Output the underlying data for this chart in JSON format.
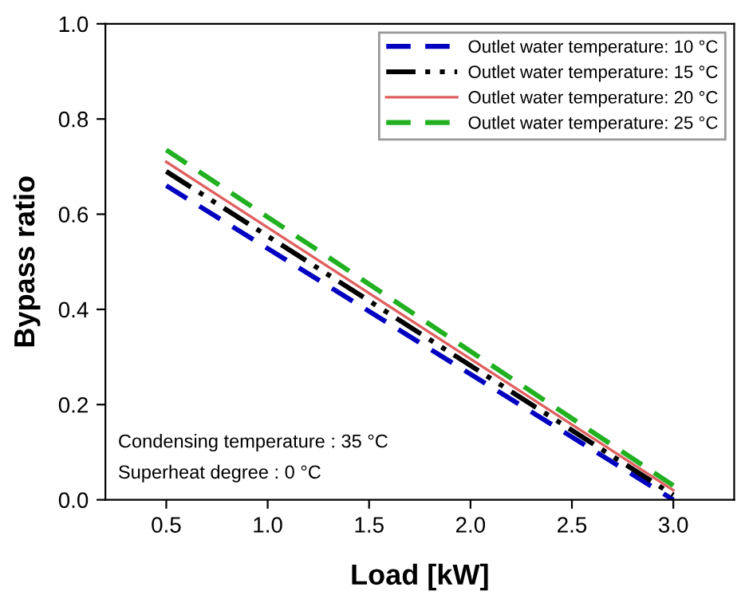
{
  "chart_data": {
    "type": "line",
    "xlabel": "Load [kW]",
    "ylabel": "Bypass ratio",
    "xlim": [
      0.2,
      3.3
    ],
    "xticks": [
      {
        "value": 0.5,
        "label": "0.5"
      },
      {
        "value": 1.0,
        "label": "1.0"
      },
      {
        "value": 1.5,
        "label": "1.5"
      },
      {
        "value": 2.0,
        "label": "2.0"
      },
      {
        "value": 2.5,
        "label": "2.5"
      },
      {
        "value": 3.0,
        "label": "3.0"
      }
    ],
    "ylim": [
      0,
      1.0
    ],
    "yticks": [
      {
        "value": 0,
        "label": "0.0"
      },
      {
        "value": 0.2,
        "label": "0.2"
      },
      {
        "value": 0.4,
        "label": "0.4"
      },
      {
        "value": 0.6,
        "label": "0.6"
      },
      {
        "value": 0.8,
        "label": "0.8"
      },
      {
        "value": 1.0,
        "label": "1.0"
      }
    ],
    "x": [
      0.5,
      3.0
    ],
    "series": [
      {
        "name": "Outlet water temperature: 10 °C",
        "color": "#0000c0",
        "line_style": "dashed",
        "values": [
          0.66,
          0.0
        ]
      },
      {
        "name": "Outlet water temperature: 15 °C",
        "color": "#000000",
        "line_style": "dashdotdot",
        "values": [
          0.69,
          0.01
        ]
      },
      {
        "name": "Outlet water temperature: 20 °C",
        "color": "#e06060",
        "line_style": "solid",
        "values": [
          0.71,
          0.02
        ]
      },
      {
        "name": "Outlet water temperature: 25 °C",
        "color": "#20b020",
        "line_style": "dashed",
        "values": [
          0.735,
          0.03
        ]
      }
    ],
    "annotations": [
      "Condensing temperature : 35 °C",
      "Superheat degree : 0 °C"
    ],
    "legend": "top right",
    "grid": false,
    "marker": "none"
  }
}
